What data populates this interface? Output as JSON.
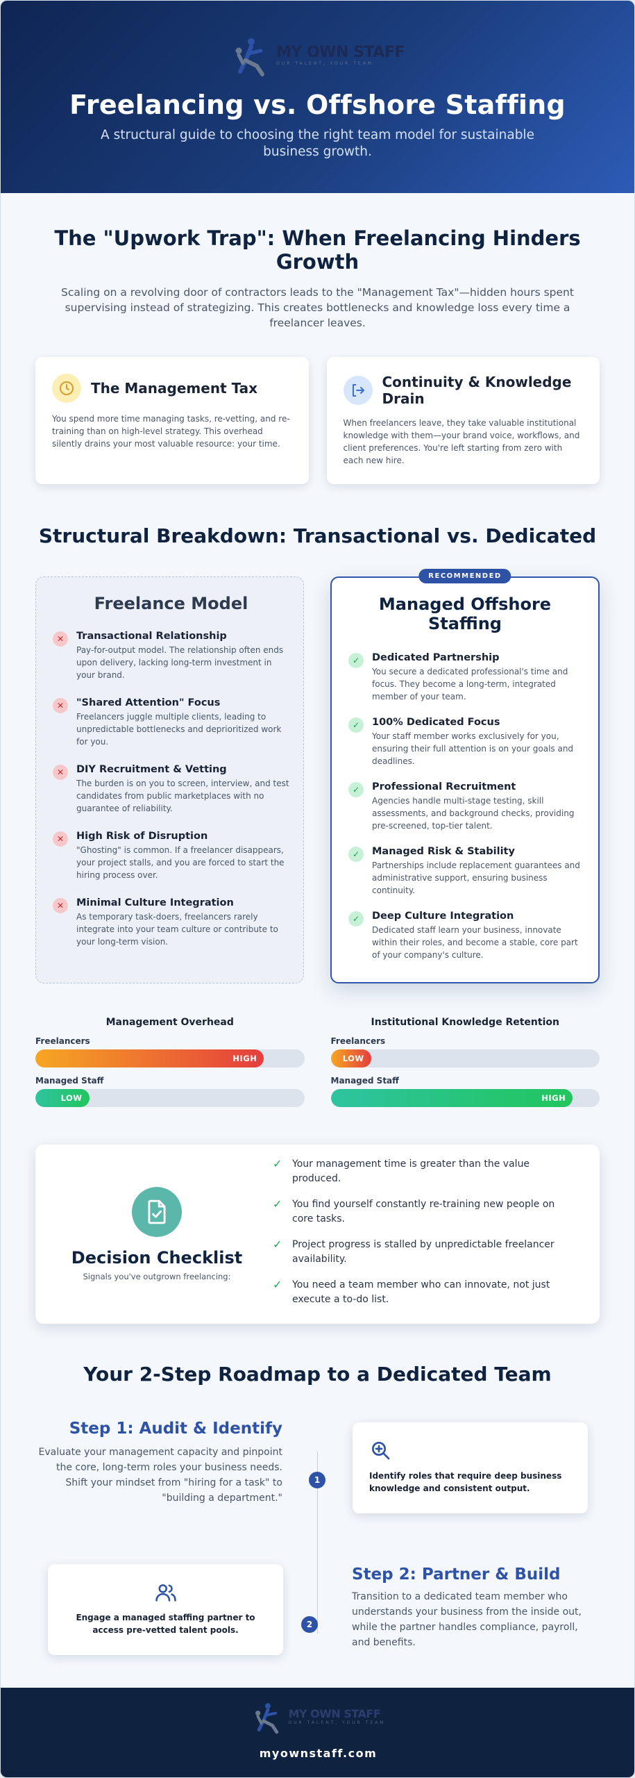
{
  "brand": {
    "name": "MY OWN STAFF",
    "tagline": "OUR TALENT, YOUR TEAM",
    "url": "myownstaff.com"
  },
  "hero": {
    "title": "Freelancing vs. Offshore Staffing",
    "subtitle": "A structural guide to choosing the right team model for sustainable business growth."
  },
  "trap": {
    "title": "The \"Upwork Trap\": When Freelancing Hinders Growth",
    "lead": "Scaling on a revolving door of contractors leads to the \"Management Tax\"—hidden hours spent supervising instead of strategizing. This creates bottlenecks and knowledge loss every time a freelancer leaves.",
    "cards": [
      {
        "icon": "clock-icon",
        "title": "The Management Tax",
        "text": "You spend more time managing tasks, re-vetting, and re-training than on high-level strategy. This overhead silently drains your most valuable resource: your time."
      },
      {
        "icon": "exit-icon",
        "title": "Continuity & Knowledge Drain",
        "text": "When freelancers leave, they take valuable institutional knowledge with them—your brand voice, workflows, and client preferences. You're left starting from zero with each new hire."
      }
    ]
  },
  "breakdown": {
    "title": "Structural Breakdown: Transactional vs. Dedicated",
    "freelance": {
      "title": "Freelance Model",
      "items": [
        {
          "title": "Transactional Relationship",
          "text": "Pay-for-output model. The relationship often ends upon delivery, lacking long-term investment in your brand."
        },
        {
          "title": "\"Shared Attention\" Focus",
          "text": "Freelancers juggle multiple clients, leading to unpredictable bottlenecks and deprioritized work for you."
        },
        {
          "title": "DIY Recruitment & Vetting",
          "text": "The burden is on you to screen, interview, and test candidates from public marketplaces with no guarantee of reliability."
        },
        {
          "title": "High Risk of Disruption",
          "text": "\"Ghosting\" is common. If a freelancer disappears, your project stalls, and you are forced to start the hiring process over."
        },
        {
          "title": "Minimal Culture Integration",
          "text": "As temporary task-doers, freelancers rarely integrate into your team culture or contribute to your long-term vision."
        }
      ]
    },
    "managed": {
      "badge": "RECOMMENDED",
      "title": "Managed Offshore Staffing",
      "items": [
        {
          "title": "Dedicated Partnership",
          "text": "You secure a dedicated professional's time and focus. They become a long-term, integrated member of your team."
        },
        {
          "title": "100% Dedicated Focus",
          "text": "Your staff member works exclusively for you, ensuring their full attention is on your goals and deadlines."
        },
        {
          "title": "Professional Recruitment",
          "text": "Agencies handle multi-stage testing, skill assessments, and background checks, providing pre-screened, top-tier talent."
        },
        {
          "title": "Managed Risk & Stability",
          "text": "Partnerships include replacement guarantees and administrative support, ensuring business continuity."
        },
        {
          "title": "Deep Culture Integration",
          "text": "Dedicated staff learn your business, innovate within their roles, and become a stable, core part of your company's culture."
        }
      ]
    }
  },
  "comparison": [
    {
      "title": "Management Overhead",
      "rows": [
        {
          "label": "Freelancers",
          "level": "HIGH",
          "fraction": 0.85,
          "color": "red"
        },
        {
          "label": "Managed Staff",
          "level": "LOW",
          "fraction": 0.2,
          "color": "green"
        }
      ]
    },
    {
      "title": "Institutional Knowledge Retention",
      "rows": [
        {
          "label": "Freelancers",
          "level": "LOW",
          "fraction": 0.15,
          "color": "red"
        },
        {
          "label": "Managed Staff",
          "level": "HIGH",
          "fraction": 0.9,
          "color": "green"
        }
      ]
    }
  ],
  "checklist": {
    "icon": "document-check-icon",
    "title": "Decision Checklist",
    "subtitle": "Signals you've outgrown freelancing:",
    "items": [
      "Your management time is greater than the value produced.",
      "You find yourself constantly re-training new people on core tasks.",
      "Project progress is stalled by unpredictable freelancer availability.",
      "You need a team member who can innovate, not just execute a to-do list."
    ]
  },
  "roadmap": {
    "title": "Your 2-Step Roadmap to a Dedicated Team",
    "steps": [
      {
        "number": "1",
        "title": "Step 1: Audit & Identify",
        "text": "Evaluate your management capacity and pinpoint the core, long-term roles your business needs. Shift your mindset from \"hiring for a task\" to \"building a department.\"",
        "card_icon": "search-plus-icon",
        "card_text": "Identify roles that require deep business knowledge and consistent output."
      },
      {
        "number": "2",
        "title": "Step 2: Partner & Build",
        "text": "Transition to a dedicated team member who understands your business from the inside out, while the partner handles compliance, payroll, and benefits.",
        "card_icon": "users-icon",
        "card_text": "Engage a managed staffing partner to access pre-vetted talent pools."
      }
    ]
  },
  "colors": {
    "navy": "#0f2341",
    "accent": "#2e53a6",
    "green": "#22c55e",
    "red": "#e53e3e",
    "teal": "#5cb7ab"
  }
}
